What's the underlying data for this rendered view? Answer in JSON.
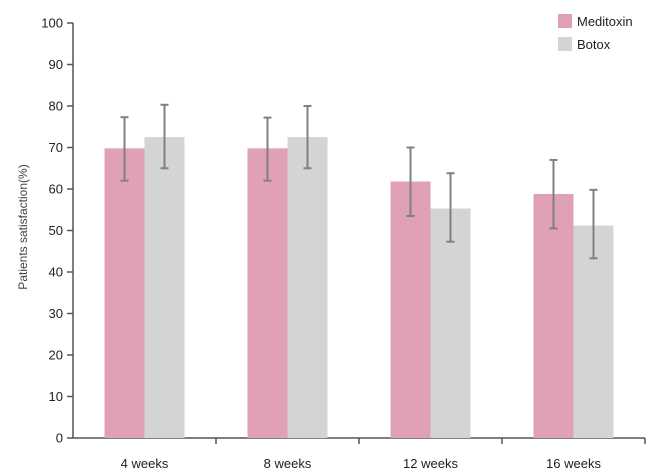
{
  "chart_data": {
    "type": "bar",
    "categories": [
      "4 weeks",
      "8 weeks",
      "12 weeks",
      "16 weeks"
    ],
    "series": [
      {
        "name": "Meditoxin",
        "color": "#e0a0b5",
        "values": [
          69.8,
          69.8,
          61.8,
          58.8
        ],
        "error_low": [
          62.0,
          62.0,
          53.5,
          50.5
        ],
        "error_high": [
          77.3,
          77.2,
          70.0,
          67.0
        ]
      },
      {
        "name": "Botox",
        "color": "#d4d4d6",
        "values": [
          72.5,
          72.5,
          55.3,
          51.2
        ],
        "error_low": [
          65.0,
          65.0,
          47.3,
          43.3
        ],
        "error_high": [
          80.3,
          80.0,
          63.8,
          59.8
        ]
      }
    ],
    "title": "",
    "xlabel": "",
    "ylabel": "Patients satisfaction(%)",
    "ylim": [
      0,
      100
    ],
    "yticks": [
      0,
      10,
      20,
      30,
      40,
      50,
      60,
      70,
      80,
      90,
      100
    ],
    "grid": false,
    "legend_position": "top-right",
    "axis_color": "#555555",
    "error_bar_color": "#808080"
  }
}
